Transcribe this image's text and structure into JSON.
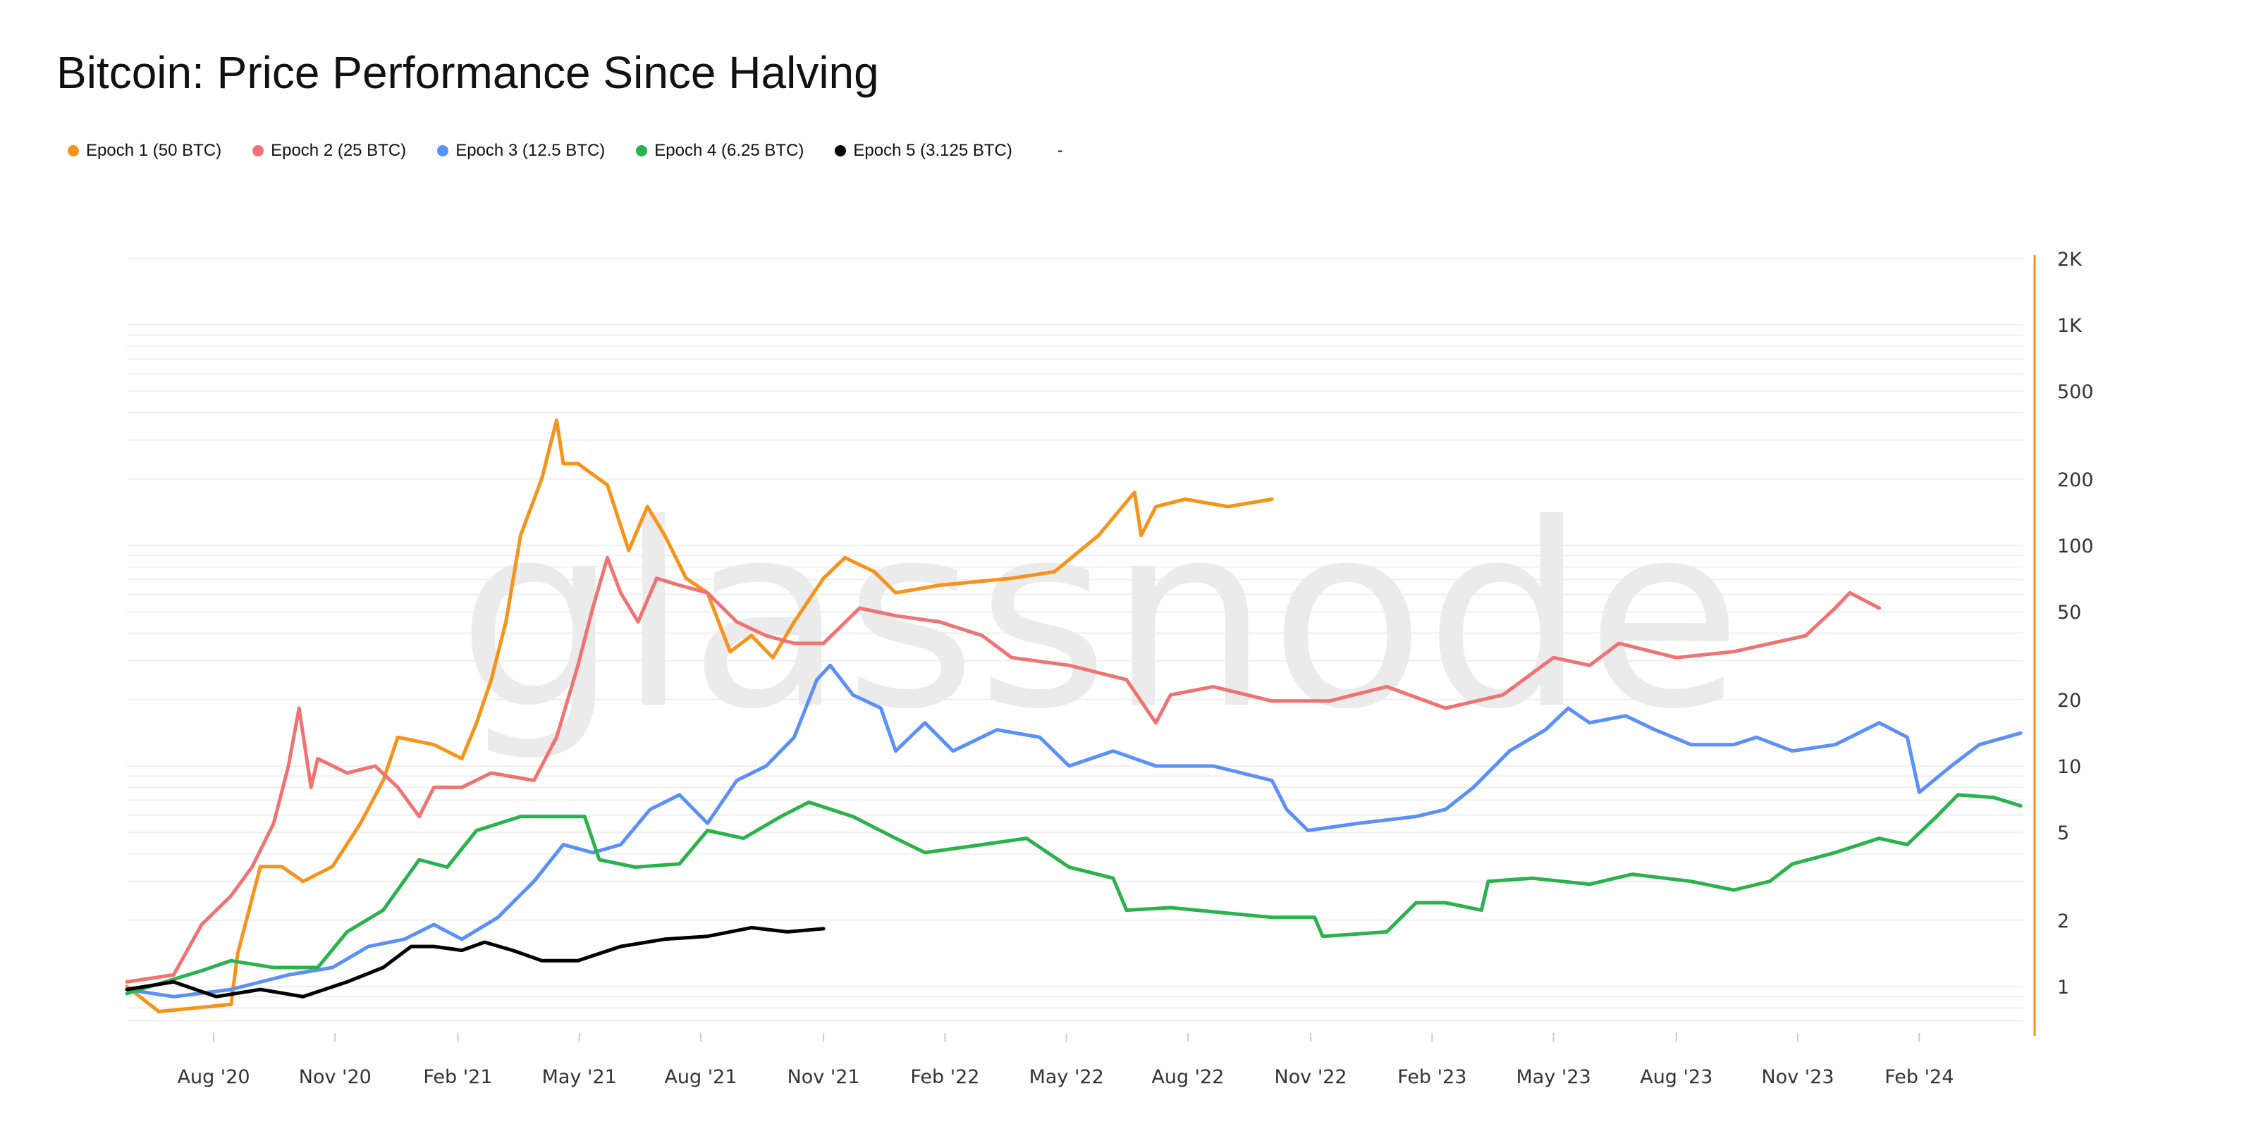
{
  "chart_data": {
    "type": "line",
    "title": "Bitcoin: Price Performance Since Halving",
    "watermark": "glassnode",
    "xlabel": "",
    "ylabel": "",
    "x_unit": "days since halving",
    "y_scale": "log",
    "ylim": [
      0.62,
      2000
    ],
    "xlim": [
      0,
      1420
    ],
    "grid": true,
    "legend_position": "top-left",
    "legend_extra": "-",
    "yticks": [
      {
        "label": "2K",
        "value": 2000
      },
      {
        "label": "1K",
        "value": 1000
      },
      {
        "label": "500",
        "value": 500
      },
      {
        "label": "200",
        "value": 200
      },
      {
        "label": "100",
        "value": 100
      },
      {
        "label": "50",
        "value": 50
      },
      {
        "label": "20",
        "value": 20
      },
      {
        "label": "10",
        "value": 10
      },
      {
        "label": "5",
        "value": 5
      },
      {
        "label": "2",
        "value": 2
      },
      {
        "label": "1",
        "value": 1
      }
    ],
    "xticks": [
      {
        "label": "Aug '20",
        "day": 65
      },
      {
        "label": "Nov '20",
        "day": 156
      },
      {
        "label": "Feb '21",
        "day": 248
      },
      {
        "label": "May '21",
        "day": 339
      },
      {
        "label": "Aug '21",
        "day": 430
      },
      {
        "label": "Nov '21",
        "day": 522
      },
      {
        "label": "Feb '22",
        "day": 613
      },
      {
        "label": "May '22",
        "day": 704
      },
      {
        "label": "Aug '22",
        "day": 795
      },
      {
        "label": "Nov '22",
        "day": 887
      },
      {
        "label": "Feb '23",
        "day": 978
      },
      {
        "label": "May '23",
        "day": 1069
      },
      {
        "label": "Aug '23",
        "day": 1161
      },
      {
        "label": "Nov '23",
        "day": 1252
      },
      {
        "label": "Feb '24",
        "day": 1343
      }
    ],
    "series": [
      {
        "name": "Epoch 1 (50 BTC)",
        "color": "#f7931a",
        "points": [
          [
            0,
            1.0
          ],
          [
            24,
            0.77
          ],
          [
            78,
            0.83
          ],
          [
            83,
            1.41
          ],
          [
            100,
            3.5
          ],
          [
            116,
            3.5
          ],
          [
            132,
            3.0
          ],
          [
            154,
            3.5
          ],
          [
            175,
            5.5
          ],
          [
            192,
            8.6
          ],
          [
            203,
            13.5
          ],
          [
            230,
            12.5
          ],
          [
            251,
            10.8
          ],
          [
            262,
            15.7
          ],
          [
            273,
            24.6
          ],
          [
            284,
            45
          ],
          [
            295,
            111
          ],
          [
            311,
            202
          ],
          [
            322,
            370
          ],
          [
            327,
            235
          ],
          [
            338,
            235
          ],
          [
            360,
            188
          ],
          [
            376,
            95
          ],
          [
            390,
            150
          ],
          [
            403,
            111
          ],
          [
            419,
            71
          ],
          [
            435,
            61
          ],
          [
            452,
            33
          ],
          [
            468,
            39
          ],
          [
            484,
            31
          ],
          [
            500,
            45
          ],
          [
            522,
            71
          ],
          [
            538,
            88
          ],
          [
            560,
            76
          ],
          [
            576,
            61
          ],
          [
            609,
            66
          ],
          [
            663,
            71
          ],
          [
            695,
            76
          ],
          [
            728,
            111
          ],
          [
            755,
            174
          ],
          [
            760,
            111
          ],
          [
            771,
            150
          ],
          [
            793,
            162
          ],
          [
            825,
            150
          ],
          [
            858,
            162
          ]
        ]
      },
      {
        "name": "Epoch 2 (25 BTC)",
        "color": "#f07373",
        "points": [
          [
            0,
            1.05
          ],
          [
            35,
            1.13
          ],
          [
            56,
            1.91
          ],
          [
            78,
            2.58
          ],
          [
            94,
            3.5
          ],
          [
            110,
            5.5
          ],
          [
            121,
            10
          ],
          [
            129,
            18.3
          ],
          [
            138,
            8
          ],
          [
            143,
            10.8
          ],
          [
            165,
            9.3
          ],
          [
            186,
            10
          ],
          [
            203,
            8
          ],
          [
            219,
            5.9
          ],
          [
            230,
            8
          ],
          [
            251,
            8
          ],
          [
            273,
            9.3
          ],
          [
            305,
            8.6
          ],
          [
            322,
            13.5
          ],
          [
            338,
            28.6
          ],
          [
            349,
            52
          ],
          [
            360,
            88
          ],
          [
            370,
            61
          ],
          [
            383,
            45
          ],
          [
            397,
            71
          ],
          [
            414,
            66
          ],
          [
            435,
            61
          ],
          [
            457,
            45
          ],
          [
            479,
            39
          ],
          [
            500,
            36
          ],
          [
            522,
            36
          ],
          [
            549,
            52
          ],
          [
            576,
            48
          ],
          [
            609,
            45
          ],
          [
            641,
            39
          ],
          [
            663,
            31
          ],
          [
            706,
            28.6
          ],
          [
            749,
            24.6
          ],
          [
            771,
            15.7
          ],
          [
            782,
            21
          ],
          [
            814,
            22.9
          ],
          [
            858,
            19.7
          ],
          [
            901,
            19.7
          ],
          [
            944,
            22.9
          ],
          [
            988,
            18.3
          ],
          [
            1031,
            21
          ],
          [
            1069,
            31
          ],
          [
            1096,
            28.6
          ],
          [
            1118,
            36
          ],
          [
            1161,
            31
          ],
          [
            1204,
            33
          ],
          [
            1258,
            39
          ],
          [
            1280,
            52
          ],
          [
            1291,
            61
          ],
          [
            1313,
            52
          ]
        ]
      },
      {
        "name": "Epoch 3 (12.5 BTC)",
        "color": "#5b8ff9",
        "points": [
          [
            0,
            0.97
          ],
          [
            35,
            0.9
          ],
          [
            78,
            0.97
          ],
          [
            121,
            1.13
          ],
          [
            154,
            1.22
          ],
          [
            181,
            1.52
          ],
          [
            208,
            1.64
          ],
          [
            230,
            1.91
          ],
          [
            251,
            1.64
          ],
          [
            278,
            2.06
          ],
          [
            305,
            3.0
          ],
          [
            327,
            4.4
          ],
          [
            349,
            4.05
          ],
          [
            370,
            4.4
          ],
          [
            392,
            6.35
          ],
          [
            414,
            7.4
          ],
          [
            435,
            5.5
          ],
          [
            457,
            8.6
          ],
          [
            479,
            10
          ],
          [
            500,
            13.5
          ],
          [
            517,
            24.6
          ],
          [
            527,
            28.6
          ],
          [
            544,
            21
          ],
          [
            565,
            18.3
          ],
          [
            576,
            11.7
          ],
          [
            598,
            15.7
          ],
          [
            619,
            11.7
          ],
          [
            652,
            14.6
          ],
          [
            684,
            13.5
          ],
          [
            706,
            10
          ],
          [
            739,
            11.7
          ],
          [
            771,
            10
          ],
          [
            814,
            10
          ],
          [
            858,
            8.6
          ],
          [
            869,
            6.35
          ],
          [
            885,
            5.1
          ],
          [
            923,
            5.5
          ],
          [
            966,
            5.9
          ],
          [
            988,
            6.35
          ],
          [
            1009,
            8
          ],
          [
            1036,
            11.7
          ],
          [
            1063,
            14.6
          ],
          [
            1080,
            18.3
          ],
          [
            1096,
            15.7
          ],
          [
            1123,
            16.9
          ],
          [
            1145,
            14.6
          ],
          [
            1172,
            12.5
          ],
          [
            1204,
            12.5
          ],
          [
            1221,
            13.5
          ],
          [
            1248,
            11.7
          ],
          [
            1280,
            12.5
          ],
          [
            1313,
            15.7
          ],
          [
            1334,
            13.5
          ],
          [
            1343,
            7.6
          ],
          [
            1367,
            10
          ],
          [
            1388,
            12.5
          ],
          [
            1419,
            14.1
          ]
        ]
      },
      {
        "name": "Epoch 4 (6.25 BTC)",
        "color": "#2bb24c",
        "points": [
          [
            0,
            0.93
          ],
          [
            56,
            1.18
          ],
          [
            78,
            1.31
          ],
          [
            110,
            1.22
          ],
          [
            143,
            1.22
          ],
          [
            165,
            1.77
          ],
          [
            192,
            2.22
          ],
          [
            219,
            3.76
          ],
          [
            240,
            3.48
          ],
          [
            262,
            5.1
          ],
          [
            295,
            5.9
          ],
          [
            322,
            5.9
          ],
          [
            343,
            5.9
          ],
          [
            354,
            3.76
          ],
          [
            381,
            3.48
          ],
          [
            414,
            3.6
          ],
          [
            435,
            5.1
          ],
          [
            462,
            4.7
          ],
          [
            490,
            5.9
          ],
          [
            511,
            6.85
          ],
          [
            544,
            5.9
          ],
          [
            576,
            4.7
          ],
          [
            598,
            4.05
          ],
          [
            641,
            4.4
          ],
          [
            674,
            4.7
          ],
          [
            706,
            3.48
          ],
          [
            739,
            3.1
          ],
          [
            749,
            2.22
          ],
          [
            782,
            2.28
          ],
          [
            825,
            2.15
          ],
          [
            858,
            2.06
          ],
          [
            890,
            2.06
          ],
          [
            896,
            1.69
          ],
          [
            944,
            1.77
          ],
          [
            966,
            2.4
          ],
          [
            988,
            2.4
          ],
          [
            1015,
            2.22
          ],
          [
            1020,
            3.0
          ],
          [
            1053,
            3.1
          ],
          [
            1096,
            2.91
          ],
          [
            1128,
            3.23
          ],
          [
            1172,
            3.0
          ],
          [
            1204,
            2.74
          ],
          [
            1231,
            3.0
          ],
          [
            1248,
            3.6
          ],
          [
            1280,
            4.05
          ],
          [
            1313,
            4.7
          ],
          [
            1334,
            4.4
          ],
          [
            1356,
            5.9
          ],
          [
            1372,
            7.4
          ],
          [
            1399,
            7.2
          ],
          [
            1419,
            6.6
          ]
        ]
      },
      {
        "name": "Epoch 5 (3.125 BTC)",
        "color": "#000000",
        "points": [
          [
            0,
            0.97
          ],
          [
            35,
            1.05
          ],
          [
            67,
            0.9
          ],
          [
            100,
            0.97
          ],
          [
            132,
            0.9
          ],
          [
            165,
            1.05
          ],
          [
            192,
            1.22
          ],
          [
            213,
            1.52
          ],
          [
            230,
            1.52
          ],
          [
            251,
            1.46
          ],
          [
            268,
            1.59
          ],
          [
            289,
            1.46
          ],
          [
            311,
            1.31
          ],
          [
            338,
            1.31
          ],
          [
            370,
            1.52
          ],
          [
            403,
            1.64
          ],
          [
            435,
            1.69
          ],
          [
            468,
            1.85
          ],
          [
            495,
            1.77
          ],
          [
            522,
            1.83
          ]
        ]
      }
    ]
  }
}
